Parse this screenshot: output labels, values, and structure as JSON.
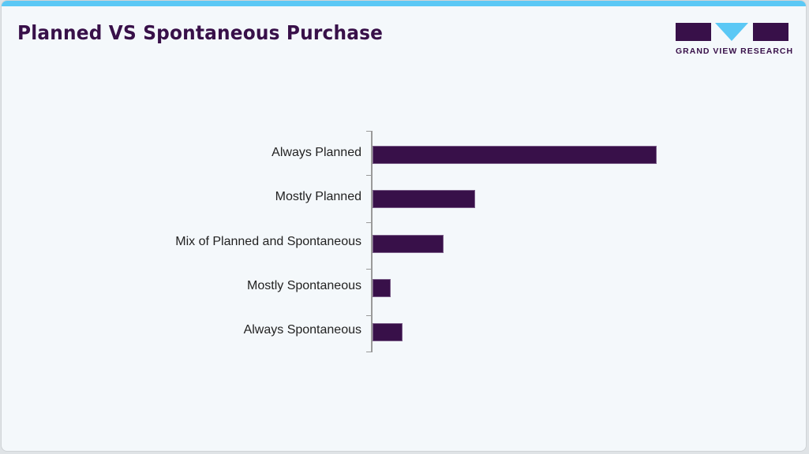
{
  "header": {
    "title": "Planned VS Spontaneous Purchase",
    "logo_text": "GRAND VIEW RESEARCH"
  },
  "colors": {
    "accent_bar": "#5bc8f5",
    "bar_fill": "#381049",
    "title": "#381049",
    "background": "#f4f8fb"
  },
  "chart_data": {
    "type": "bar",
    "orientation": "horizontal",
    "title": "Planned VS Spontaneous Purchase",
    "xlabel": "",
    "ylabel": "",
    "categories": [
      "Always Planned",
      "Mostly Planned",
      "Mix of Planned and Spontaneous",
      "Mostly Spontaneous",
      "Always Spontaneous"
    ],
    "values": [
      100,
      36,
      25,
      6.5,
      10.5
    ],
    "value_note": "relative scale (no value axis shown); largest bar = 100",
    "xlim": [
      0,
      100
    ],
    "grid": false,
    "legend": null
  }
}
